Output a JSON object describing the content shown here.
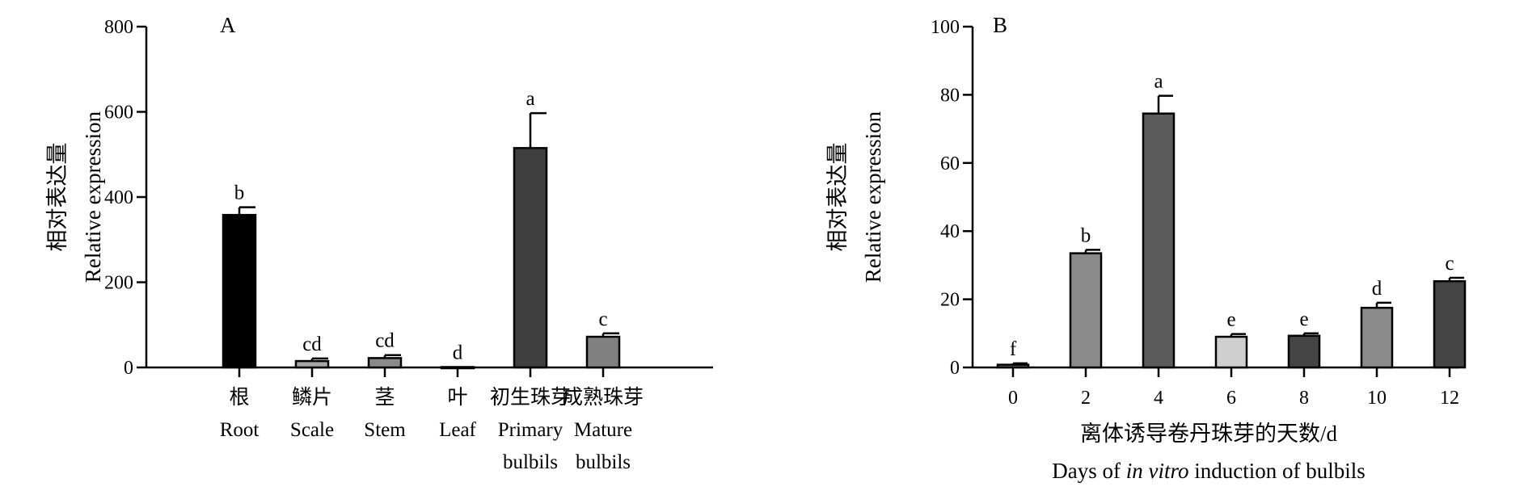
{
  "chart_data": [
    {
      "type": "bar",
      "panel_label": "A",
      "ylabel_cn": "相对表达量",
      "ylabel": "Relative expression",
      "ylim": [
        0,
        800
      ],
      "yticks": [
        "0",
        "200",
        "400",
        "600",
        "800"
      ],
      "categories": [
        {
          "cn": "根",
          "en": "Root"
        },
        {
          "cn": "鳞片",
          "en": "Scale"
        },
        {
          "cn": "茎",
          "en": "Stem"
        },
        {
          "cn": "叶",
          "en": "Leaf"
        },
        {
          "cn": "初生珠芽",
          "en": "Primary",
          "en2": "bulbils"
        },
        {
          "cn": "成熟珠芽",
          "en": "Mature",
          "en2": "bulbils"
        }
      ],
      "values": [
        358,
        15,
        22,
        1,
        515,
        72
      ],
      "errors": [
        18,
        6,
        7,
        0,
        82,
        8
      ],
      "significance": [
        "b",
        "cd",
        "cd",
        "d",
        "a",
        "c"
      ],
      "colors": [
        "#000000",
        "#a6a6a6",
        "#8a8a8a",
        "#b5b5b5",
        "#3f3f3f",
        "#808080"
      ]
    },
    {
      "type": "bar",
      "panel_label": "B",
      "ylabel_cn": "相对表达量",
      "ylabel": "Relative expression",
      "xlabel_cn": "离体诱导卷丹珠芽的天数/d",
      "xlabel_parts": [
        "Days of ",
        "in vitro",
        " induction of bulbils"
      ],
      "ylim": [
        0,
        100
      ],
      "yticks": [
        "0",
        "20",
        "40",
        "60",
        "80",
        "100"
      ],
      "categories": [
        "0",
        "2",
        "4",
        "6",
        "8",
        "10",
        "12"
      ],
      "values": [
        0.8,
        33.5,
        74.5,
        9,
        9.3,
        17.5,
        25.3
      ],
      "errors": [
        0.4,
        1.0,
        5.2,
        0.8,
        0.7,
        1.5,
        1.0
      ],
      "significance": [
        "f",
        "b",
        "a",
        "e",
        "e",
        "d",
        "c"
      ],
      "colors": [
        "#6a6a6a",
        "#8a8a8a",
        "#5c5c5c",
        "#cfcfcf",
        "#444444",
        "#8a8a8a",
        "#444444"
      ]
    }
  ]
}
